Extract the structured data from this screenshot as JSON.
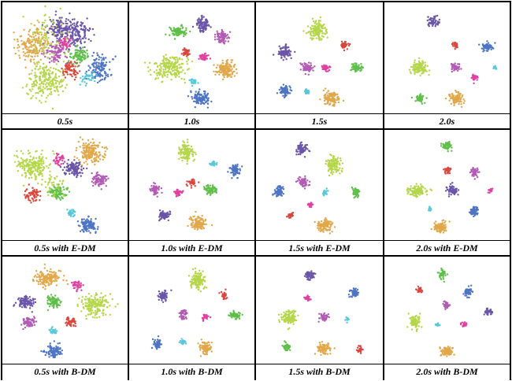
{
  "figure": {
    "rows": [
      {
        "cells": [
          {
            "caption": "0.5s",
            "variant": "mixed-a"
          },
          {
            "caption": "1.0s",
            "variant": "sep-1"
          },
          {
            "caption": "1.5s",
            "variant": "sep-2"
          },
          {
            "caption": "2.0s",
            "variant": "sep-3"
          }
        ]
      },
      {
        "cells": [
          {
            "caption": "0.5s with E-DM",
            "variant": "mixed-b"
          },
          {
            "caption": "1.0s with E-DM",
            "variant": "sep-4"
          },
          {
            "caption": "1.5s with E-DM",
            "variant": "sep-5"
          },
          {
            "caption": "2.0s with E-DM",
            "variant": "sep-6"
          }
        ]
      },
      {
        "cells": [
          {
            "caption": "0.5s with B-DM",
            "variant": "mixed-c"
          },
          {
            "caption": "1.0s with B-DM",
            "variant": "sep-7"
          },
          {
            "caption": "1.5s with B-DM",
            "variant": "sep-8"
          },
          {
            "caption": "2.0s with B-DM",
            "variant": "sep-9"
          }
        ]
      }
    ],
    "cluster_colors": {
      "lime": "#b5d64a",
      "orange": "#e0a84a",
      "purple": "#6a55a8",
      "blue": "#4e74c4",
      "magenta": "#b25bb5",
      "green": "#5fbf4a",
      "red": "#d9473d",
      "pink": "#e040a0",
      "cyan": "#5bc8d8"
    }
  }
}
